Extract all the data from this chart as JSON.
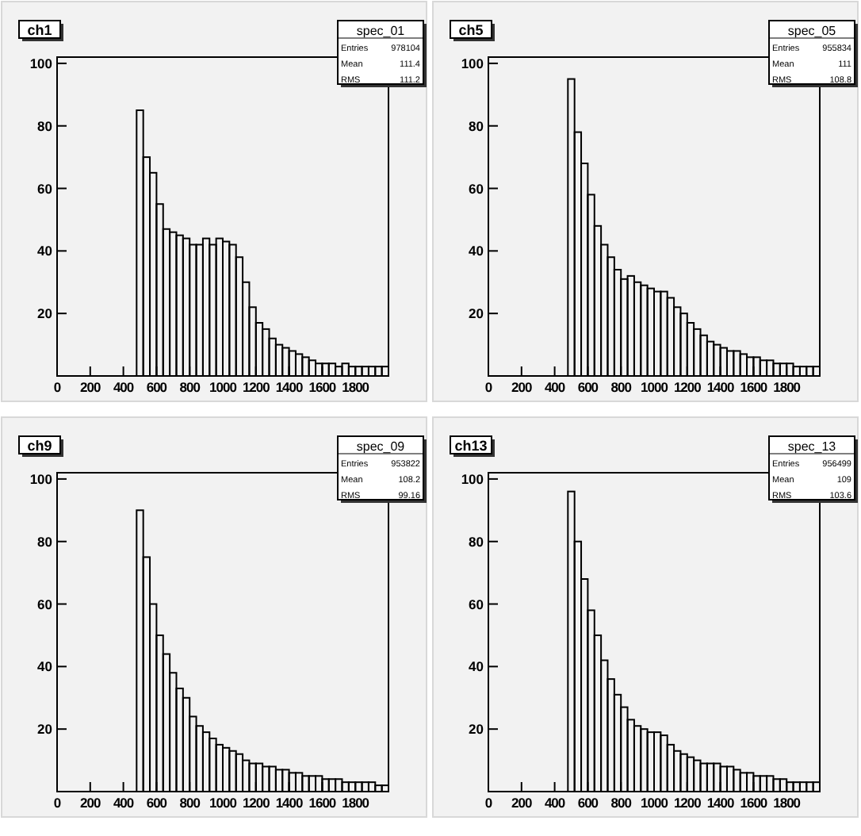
{
  "chart_data": [
    {
      "type": "histogram",
      "title": "ch1",
      "annotations": [
        "spec_01",
        "Entries 978104",
        "Mean 111.4",
        "RMS 111.2"
      ],
      "color": "#000000",
      "xlim": [
        0,
        2000
      ],
      "ylim": [
        0,
        102
      ],
      "xticks": [
        0,
        200,
        400,
        600,
        800,
        1000,
        1200,
        1400,
        1600,
        1800
      ],
      "yticks": [
        20,
        40,
        60,
        80,
        100
      ],
      "bins": [
        480,
        520,
        560,
        600,
        640,
        680,
        720,
        760,
        800,
        840,
        880,
        920,
        960,
        1000,
        1040,
        1080,
        1120,
        1160,
        1200,
        1240,
        1280,
        1320,
        1360,
        1400,
        1440,
        1480,
        1520,
        1560,
        1600,
        1640,
        1680,
        1720,
        1760,
        1800,
        1840,
        1880,
        1920,
        1960,
        2000
      ],
      "values": [
        85,
        70,
        65,
        55,
        47,
        46,
        45,
        44,
        42,
        42,
        44,
        42,
        44,
        43,
        42,
        38,
        30,
        22,
        17,
        15,
        12,
        10,
        9,
        8,
        7,
        6,
        5,
        4,
        4,
        4,
        3,
        4,
        3,
        3,
        3,
        3,
        3,
        3
      ]
    },
    {
      "type": "histogram",
      "title": "ch5",
      "annotations": [
        "spec_05",
        "Entries 955834",
        "Mean 111",
        "RMS 108.8"
      ],
      "color": "#000000",
      "xlim": [
        0,
        2000
      ],
      "ylim": [
        0,
        102
      ],
      "xticks": [
        0,
        200,
        400,
        600,
        800,
        1000,
        1200,
        1400,
        1600,
        1800
      ],
      "yticks": [
        20,
        40,
        60,
        80,
        100
      ],
      "bins": [
        480,
        520,
        560,
        600,
        640,
        680,
        720,
        760,
        800,
        840,
        880,
        920,
        960,
        1000,
        1040,
        1080,
        1120,
        1160,
        1200,
        1240,
        1280,
        1320,
        1360,
        1400,
        1440,
        1480,
        1520,
        1560,
        1600,
        1640,
        1680,
        1720,
        1760,
        1800,
        1840,
        1880,
        1920,
        1960,
        2000
      ],
      "values": [
        95,
        78,
        68,
        58,
        48,
        42,
        38,
        34,
        31,
        32,
        30,
        29,
        28,
        27,
        27,
        25,
        22,
        20,
        17,
        15,
        13,
        11,
        10,
        9,
        8,
        8,
        7,
        6,
        6,
        5,
        5,
        4,
        4,
        4,
        3,
        3,
        3,
        3
      ]
    },
    {
      "type": "histogram",
      "title": "ch9",
      "annotations": [
        "spec_09",
        "Entries 953822",
        "Mean 108.2",
        "RMS 99.16"
      ],
      "color": "#000000",
      "xlim": [
        0,
        2000
      ],
      "ylim": [
        0,
        102
      ],
      "xticks": [
        0,
        200,
        400,
        600,
        800,
        1000,
        1200,
        1400,
        1600,
        1800
      ],
      "yticks": [
        20,
        40,
        60,
        80,
        100
      ],
      "bins": [
        480,
        520,
        560,
        600,
        640,
        680,
        720,
        760,
        800,
        840,
        880,
        920,
        960,
        1000,
        1040,
        1080,
        1120,
        1160,
        1200,
        1240,
        1280,
        1320,
        1360,
        1400,
        1440,
        1480,
        1520,
        1560,
        1600,
        1640,
        1680,
        1720,
        1760,
        1800,
        1840,
        1880,
        1920,
        1960,
        2000
      ],
      "values": [
        90,
        75,
        60,
        50,
        44,
        38,
        33,
        30,
        24,
        21,
        19,
        17,
        15,
        14,
        13,
        12,
        10,
        9,
        9,
        8,
        8,
        7,
        7,
        6,
        6,
        5,
        5,
        5,
        4,
        4,
        4,
        3,
        3,
        3,
        3,
        3,
        2,
        2
      ]
    },
    {
      "type": "histogram",
      "title": "ch13",
      "annotations": [
        "spec_13",
        "Entries 956499",
        "Mean 109",
        "RMS 103.6"
      ],
      "color": "#000000",
      "xlim": [
        0,
        2000
      ],
      "ylim": [
        0,
        102
      ],
      "xticks": [
        0,
        200,
        400,
        600,
        800,
        1000,
        1200,
        1400,
        1600,
        1800
      ],
      "yticks": [
        20,
        40,
        60,
        80,
        100
      ],
      "bins": [
        480,
        520,
        560,
        600,
        640,
        680,
        720,
        760,
        800,
        840,
        880,
        920,
        960,
        1000,
        1040,
        1080,
        1120,
        1160,
        1200,
        1240,
        1280,
        1320,
        1360,
        1400,
        1440,
        1480,
        1520,
        1560,
        1600,
        1640,
        1680,
        1720,
        1760,
        1800,
        1840,
        1880,
        1920,
        1960,
        2000
      ],
      "values": [
        96,
        80,
        68,
        58,
        50,
        42,
        36,
        31,
        27,
        23,
        21,
        20,
        19,
        19,
        18,
        15,
        13,
        12,
        11,
        10,
        9,
        9,
        9,
        8,
        8,
        7,
        6,
        6,
        5,
        5,
        5,
        4,
        4,
        3,
        3,
        3,
        3,
        3
      ]
    }
  ]
}
